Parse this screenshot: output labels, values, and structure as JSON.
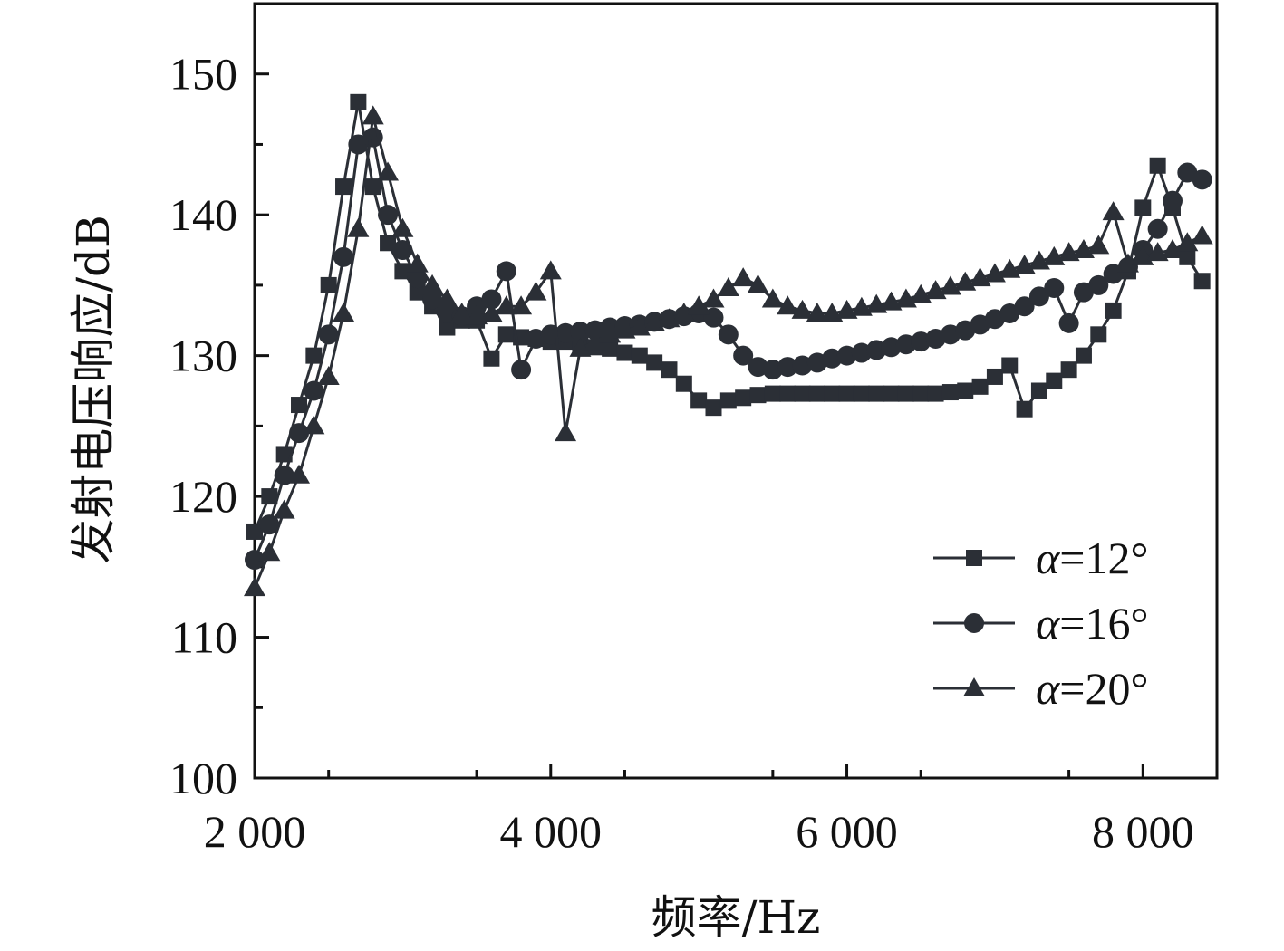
{
  "chart_data": {
    "type": "line",
    "title": "",
    "xlabel": "频率/Hz",
    "ylabel": "发射电压响应/dB",
    "xlim": [
      2000,
      8500
    ],
    "ylim": [
      100,
      155
    ],
    "x_ticks": [
      2000,
      4000,
      6000,
      8000
    ],
    "x_tick_labels": [
      "2 000",
      "4 000",
      "6 000",
      "8 000"
    ],
    "y_ticks": [
      100,
      110,
      120,
      130,
      140,
      150
    ],
    "y_tick_labels": [
      "100",
      "110",
      "120",
      "130",
      "140",
      "150"
    ],
    "legend_position": "bottom-right",
    "color": "#2b2f36",
    "series": [
      {
        "name": "α=12°",
        "legend_greek": "α",
        "legend_rest": "=12°",
        "marker": "square",
        "x": [
          2000,
          2100,
          2200,
          2300,
          2400,
          2500,
          2600,
          2700,
          2800,
          2900,
          3000,
          3100,
          3200,
          3300,
          3400,
          3500,
          3600,
          3700,
          3800,
          3900,
          4000,
          4100,
          4200,
          4300,
          4400,
          4500,
          4600,
          4700,
          4800,
          4900,
          5000,
          5100,
          5200,
          5300,
          5400,
          5500,
          5600,
          5700,
          5800,
          5900,
          6000,
          6100,
          6200,
          6300,
          6400,
          6500,
          6600,
          6700,
          6800,
          6900,
          7000,
          7100,
          7200,
          7300,
          7400,
          7500,
          7600,
          7700,
          7800,
          7900,
          8000,
          8100,
          8200,
          8300,
          8400
        ],
        "y": [
          117.5,
          120.0,
          123.0,
          126.5,
          130.0,
          135.0,
          142.0,
          148.0,
          142.0,
          138.0,
          136.0,
          134.5,
          133.5,
          132.0,
          132.5,
          132.5,
          129.8,
          131.5,
          131.3,
          131.2,
          131.0,
          131.0,
          130.8,
          130.6,
          130.5,
          130.2,
          130.0,
          129.5,
          129.0,
          128.0,
          126.8,
          126.3,
          126.8,
          127.0,
          127.2,
          127.3,
          127.3,
          127.3,
          127.3,
          127.3,
          127.3,
          127.3,
          127.3,
          127.3,
          127.3,
          127.3,
          127.3,
          127.4,
          127.5,
          127.8,
          128.5,
          129.3,
          126.2,
          127.5,
          128.2,
          129.0,
          130.0,
          131.5,
          133.2,
          136.0,
          140.5,
          143.5,
          140.5,
          137.0,
          135.3
        ]
      },
      {
        "name": "α=16°",
        "legend_greek": "α",
        "legend_rest": "=16°",
        "marker": "circle",
        "x": [
          2000,
          2100,
          2200,
          2300,
          2400,
          2500,
          2600,
          2700,
          2800,
          2900,
          3000,
          3100,
          3200,
          3300,
          3400,
          3500,
          3600,
          3700,
          3800,
          3900,
          4000,
          4100,
          4200,
          4300,
          4400,
          4500,
          4600,
          4700,
          4800,
          4900,
          5000,
          5100,
          5200,
          5300,
          5400,
          5500,
          5600,
          5700,
          5800,
          5900,
          6000,
          6100,
          6200,
          6300,
          6400,
          6500,
          6600,
          6700,
          6800,
          6900,
          7000,
          7100,
          7200,
          7300,
          7400,
          7500,
          7600,
          7700,
          7800,
          7900,
          8000,
          8100,
          8200,
          8300,
          8400
        ],
        "y": [
          115.5,
          118.0,
          121.5,
          124.5,
          127.5,
          131.5,
          137.0,
          145.0,
          145.5,
          140.0,
          137.5,
          135.5,
          134.0,
          133.0,
          132.8,
          133.5,
          134.0,
          136.0,
          129.0,
          131.2,
          131.5,
          131.6,
          131.7,
          131.8,
          132.0,
          132.1,
          132.2,
          132.4,
          132.6,
          132.8,
          133.0,
          132.7,
          131.5,
          130.0,
          129.2,
          129.0,
          129.2,
          129.3,
          129.5,
          129.8,
          130.0,
          130.2,
          130.4,
          130.6,
          130.8,
          131.0,
          131.2,
          131.5,
          131.8,
          132.2,
          132.6,
          133.0,
          133.5,
          134.2,
          134.8,
          132.3,
          134.5,
          135.0,
          135.8,
          136.3,
          137.5,
          139.0,
          141.0,
          143.0,
          142.5
        ]
      },
      {
        "name": "α=20°",
        "legend_greek": "α",
        "legend_rest": "=20°",
        "marker": "triangle",
        "x": [
          2000,
          2100,
          2200,
          2300,
          2400,
          2500,
          2600,
          2700,
          2800,
          2900,
          3000,
          3100,
          3200,
          3300,
          3400,
          3500,
          3600,
          3700,
          3800,
          3900,
          4000,
          4100,
          4200,
          4300,
          4400,
          4500,
          4600,
          4700,
          4800,
          4900,
          5000,
          5100,
          5200,
          5300,
          5400,
          5500,
          5600,
          5700,
          5800,
          5900,
          6000,
          6100,
          6200,
          6300,
          6400,
          6500,
          6600,
          6700,
          6800,
          6900,
          7000,
          7100,
          7200,
          7300,
          7400,
          7500,
          7600,
          7700,
          7800,
          7900,
          8000,
          8100,
          8200,
          8300,
          8400
        ],
        "y": [
          113.5,
          116.0,
          119.0,
          121.5,
          125.0,
          128.5,
          133.0,
          139.0,
          147.0,
          143.0,
          139.0,
          136.5,
          135.0,
          134.0,
          133.0,
          132.8,
          133.0,
          133.5,
          133.5,
          134.5,
          136.0,
          124.5,
          130.5,
          131.0,
          131.5,
          131.8,
          132.0,
          132.3,
          132.6,
          133.0,
          133.5,
          134.0,
          134.8,
          135.5,
          135.0,
          134.0,
          133.5,
          133.2,
          133.0,
          133.0,
          133.2,
          133.4,
          133.6,
          133.8,
          134.0,
          134.3,
          134.6,
          134.9,
          135.2,
          135.5,
          135.8,
          136.1,
          136.4,
          136.7,
          137.0,
          137.3,
          137.5,
          137.8,
          140.2,
          136.5,
          137.0,
          137.3,
          137.5,
          138.0,
          138.5
        ]
      }
    ]
  }
}
